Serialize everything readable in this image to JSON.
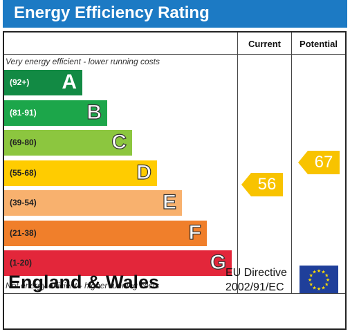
{
  "title": "Energy Efficiency Rating",
  "columns": {
    "current": "Current",
    "potential": "Potential"
  },
  "top_note": "Very energy efficient - lower running costs",
  "bottom_note": "Not energy efficient - higher running costs",
  "bands": [
    {
      "range": "(92+)",
      "letter": "A",
      "color": "#128a44"
    },
    {
      "range": "(81-91)",
      "letter": "B",
      "color": "#1ca64a"
    },
    {
      "range": "(69-80)",
      "letter": "C",
      "color": "#8cc63f"
    },
    {
      "range": "(55-68)",
      "letter": "D",
      "color": "#ffcc00"
    },
    {
      "range": "(39-54)",
      "letter": "E",
      "color": "#f8b16e"
    },
    {
      "range": "(21-38)",
      "letter": "F",
      "color": "#f07f2b"
    },
    {
      "range": "(1-20)",
      "letter": "G",
      "color": "#e3263a"
    }
  ],
  "current_rating": {
    "value": "56",
    "band": "D",
    "color": "#f8c300"
  },
  "potential_rating": {
    "value": "67",
    "band": "D",
    "color": "#f8c300"
  },
  "footer": {
    "region": "England & Wales",
    "directive_line1": "EU Directive",
    "directive_line2": "2002/91/EC"
  },
  "icons": {
    "flag": "eu-flag-icon"
  }
}
